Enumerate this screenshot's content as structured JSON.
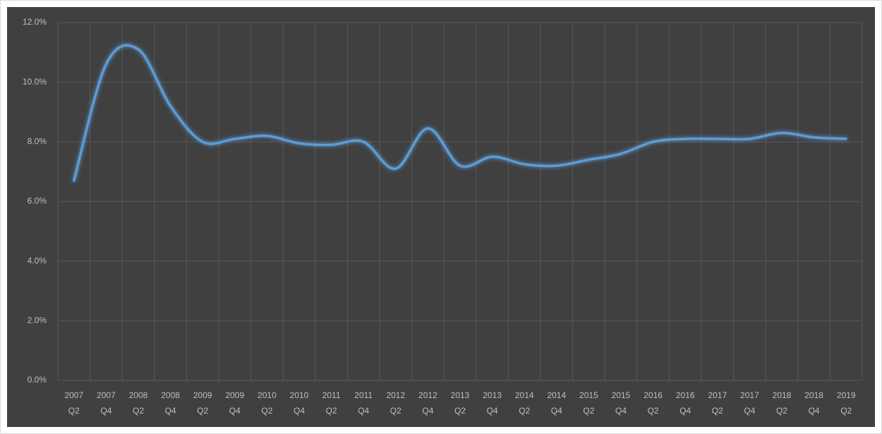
{
  "chart_data": {
    "type": "line",
    "categories": [
      "2007 Q2",
      "2007 Q4",
      "2008 Q2",
      "2008 Q4",
      "2009 Q2",
      "2009 Q4",
      "2010 Q2",
      "2010 Q4",
      "2011 Q2",
      "2011 Q4",
      "2012 Q2",
      "2012 Q4",
      "2013 Q2",
      "2013 Q4",
      "2014 Q2",
      "2014 Q4",
      "2015 Q2",
      "2015 Q4",
      "2016 Q2",
      "2016 Q4",
      "2017 Q2",
      "2017 Q4",
      "2018 Q2",
      "2018 Q4",
      "2019 Q2"
    ],
    "values": [
      6.7,
      10.6,
      11.1,
      9.2,
      8.0,
      8.1,
      8.2,
      7.95,
      7.9,
      8.0,
      7.1,
      8.45,
      7.2,
      7.5,
      7.25,
      7.2,
      7.4,
      7.6,
      8.0,
      8.1,
      8.1,
      8.1,
      8.3,
      8.15,
      8.1
    ],
    "color": "#5b9bd5",
    "ylim": [
      0,
      12
    ],
    "yticks": [
      {
        "value": 0,
        "label": "0.0%"
      },
      {
        "value": 2,
        "label": "2.0%"
      },
      {
        "value": 4,
        "label": "4.0%"
      },
      {
        "value": 6,
        "label": "6.0%"
      },
      {
        "value": 8,
        "label": "8.0%"
      },
      {
        "value": 10,
        "label": "10.0%"
      },
      {
        "value": 12,
        "label": "12.0%"
      }
    ],
    "grid": true
  }
}
